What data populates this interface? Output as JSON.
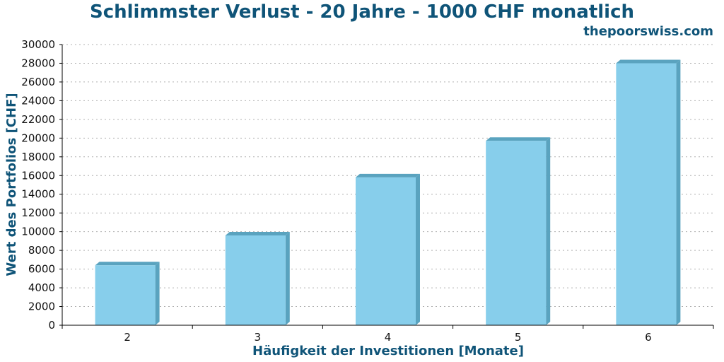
{
  "title": "Schlimmster Verlust - 20 Jahre - 1000 CHF monatlich",
  "brand": "thepoorswiss.com",
  "colors": {
    "text_accent": "#0f5478",
    "bar_front": "#87ceeb",
    "bar_side": "#5aa3bf",
    "bar_top": "#5aa3bf",
    "grid": "#b0b0b0",
    "axis": "#000000"
  },
  "chart_data": {
    "type": "bar",
    "title": "Schlimmster Verlust - 20 Jahre - 1000 CHF monatlich",
    "xlabel": "Häufigkeit der Investitionen [Monate]",
    "ylabel": "Wert des Portfolios [CHF]",
    "categories": [
      "2",
      "3",
      "4",
      "5",
      "6"
    ],
    "values": [
      6400,
      9600,
      15800,
      19700,
      28000
    ],
    "ylim": [
      0,
      30000
    ],
    "yticks": [
      0,
      2000,
      4000,
      6000,
      8000,
      10000,
      12000,
      14000,
      16000,
      18000,
      20000,
      22000,
      24000,
      26000,
      28000,
      30000
    ],
    "grid": true
  }
}
